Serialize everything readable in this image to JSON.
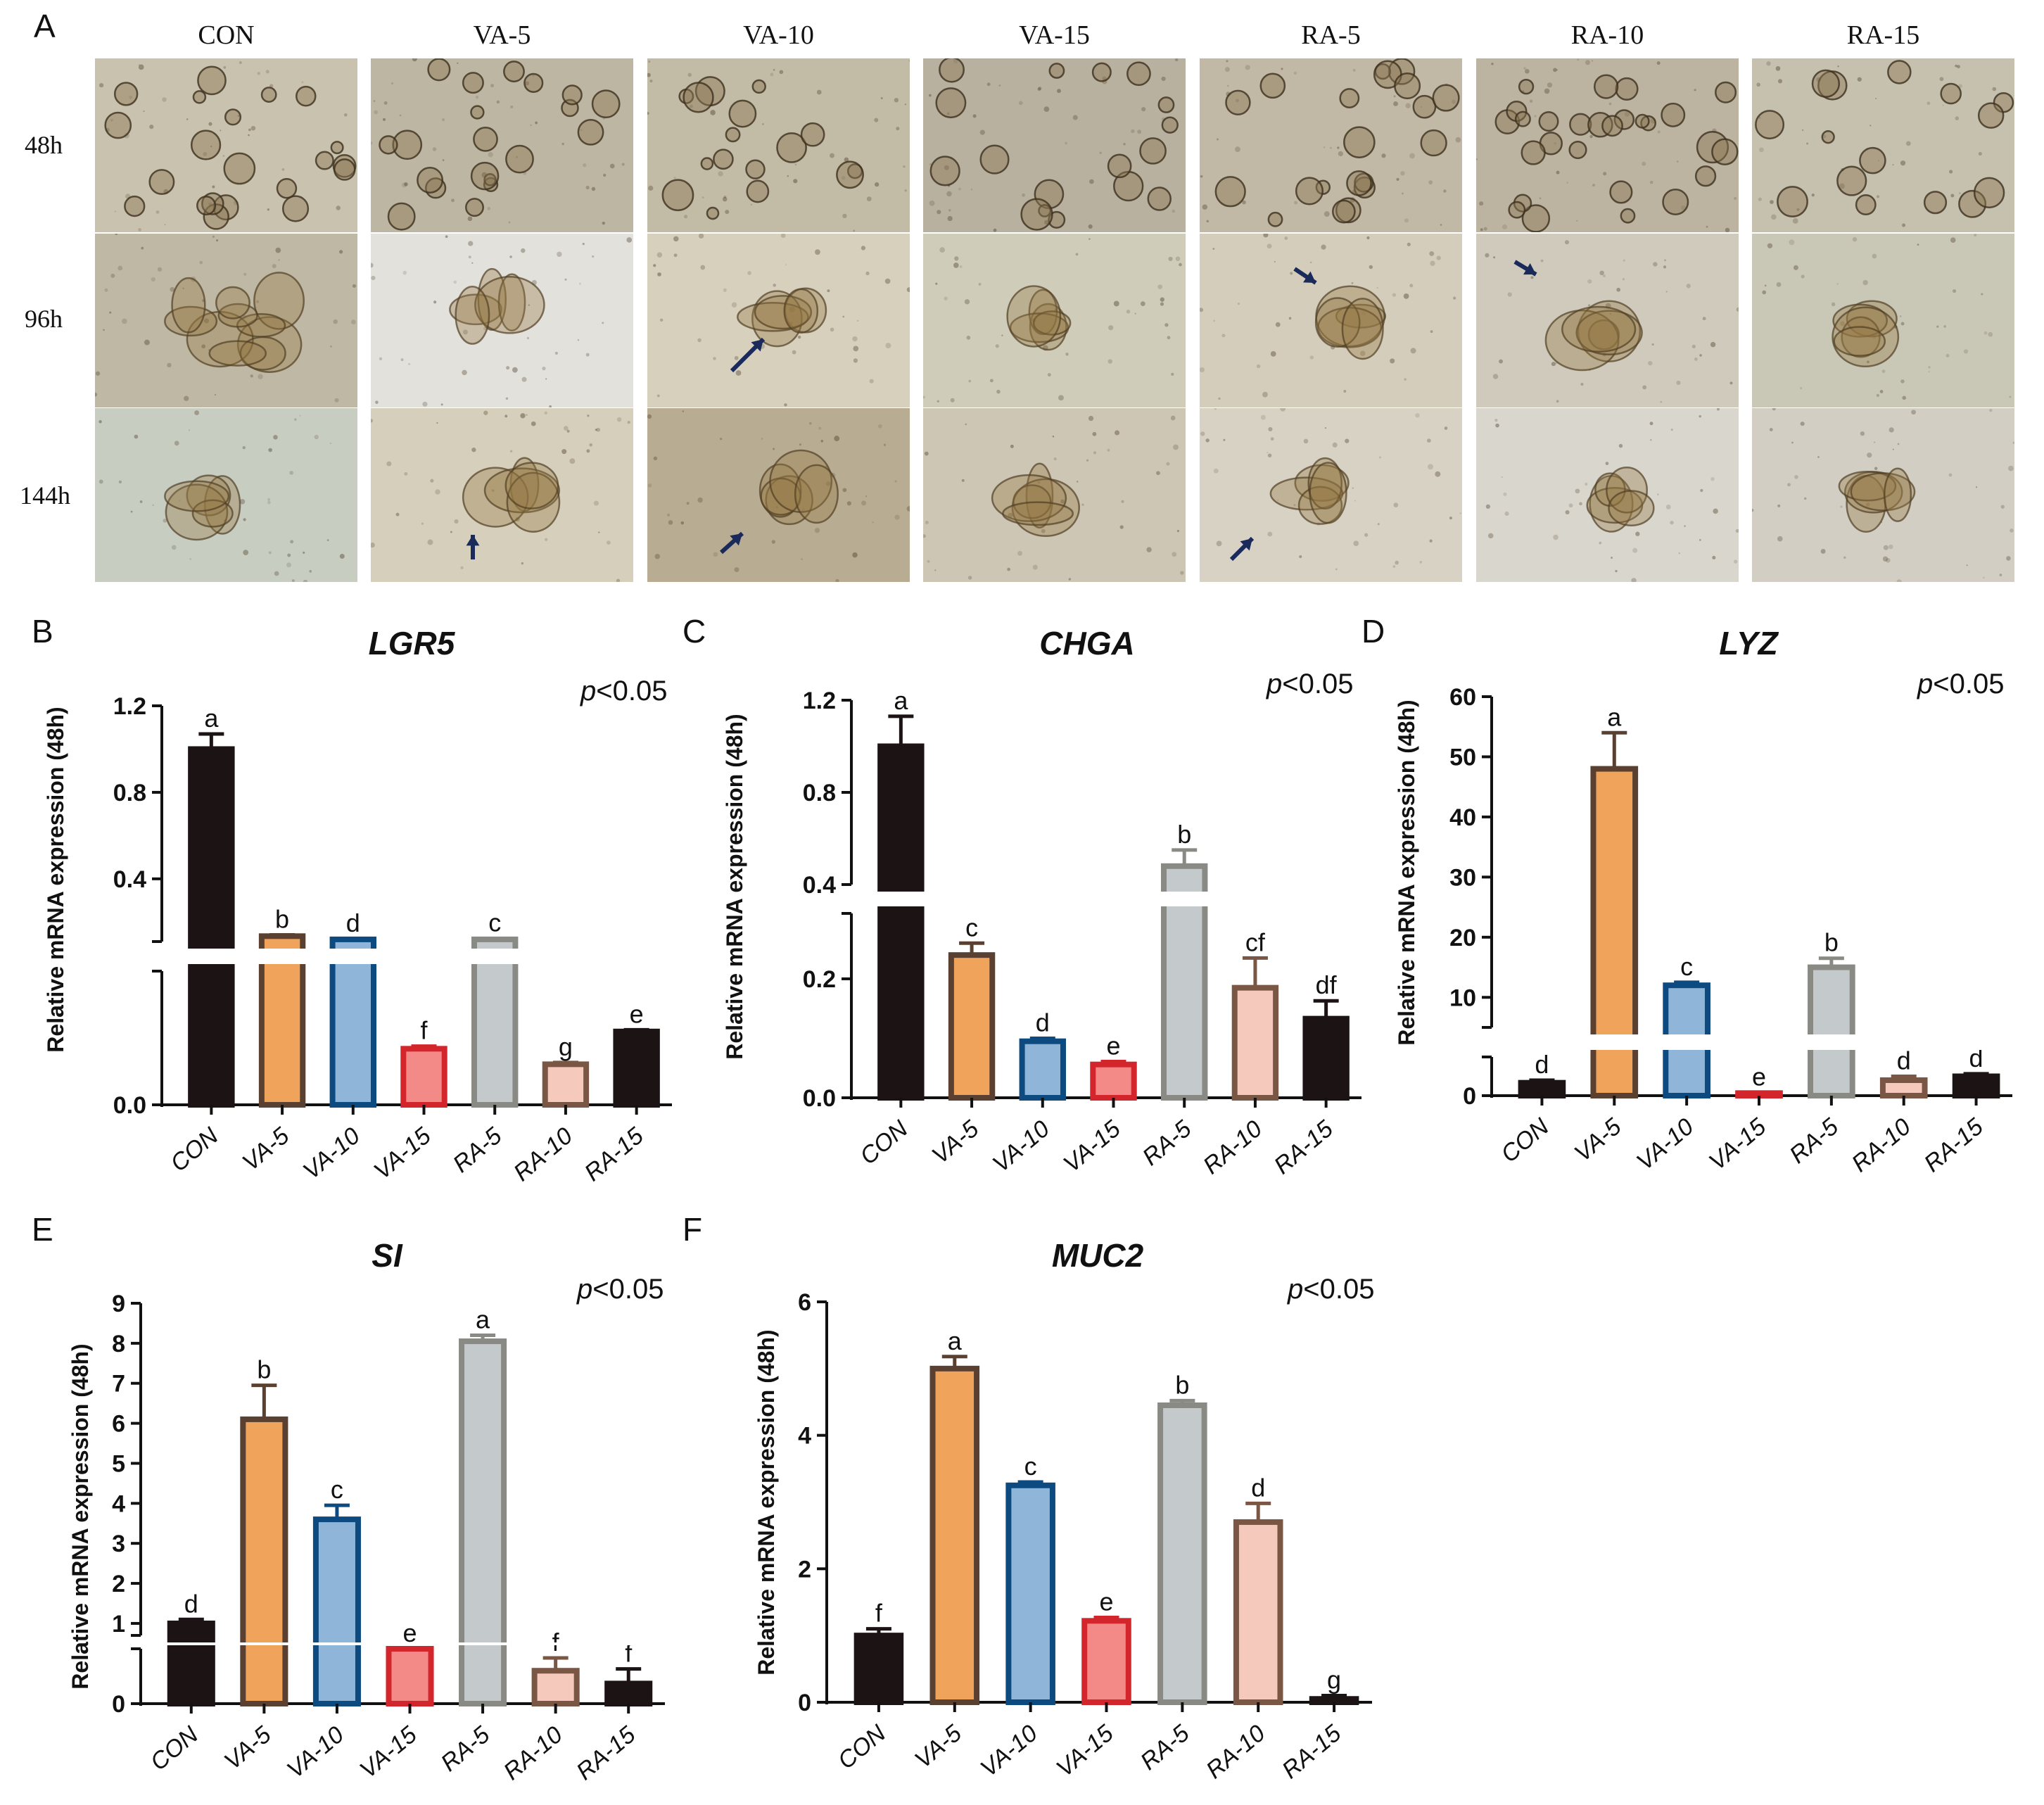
{
  "figure": {
    "panel_letters": {
      "A": "A",
      "B": "B",
      "C": "C",
      "D": "D",
      "E": "E",
      "F": "F"
    },
    "micrograph_columns": [
      "CON",
      "VA-5",
      "VA-10",
      "VA-15",
      "RA-5",
      "RA-10",
      "RA-15"
    ],
    "micrograph_rows": [
      "48h",
      "96h",
      "144h"
    ],
    "arrow_color": "#1a2a5a"
  },
  "colors": {
    "CON": "#1c1414",
    "VA-5": "#f0a35a",
    "VA-10": "#8fb6d8",
    "VA-15": "#f48a87",
    "RA-5": "#c4cacc",
    "RA-10": "#f6c9bd",
    "RA-15": "#1c1414",
    "CON_edge": "#1c1414",
    "VA-5_edge": "#5a4030",
    "VA-10_edge": "#0d4a80",
    "VA-15_edge": "#d3262c",
    "RA-5_edge": "#8a8a85",
    "RA-10_edge": "#7a5645",
    "RA-15_edge": "#1c1414"
  },
  "chart_data": [
    {
      "panel": "B",
      "type": "bar",
      "title": "LGR5",
      "annotation": "p<0.05",
      "annotation_italic": "p",
      "annotation_rest": "<0.05",
      "ylabel": "Relative mRNA expression (48h)",
      "categories": [
        "CON",
        "VA-5",
        "VA-10",
        "VA-15",
        "RA-5",
        "RA-10",
        "RA-15"
      ],
      "values": [
        1.0,
        0.135,
        0.12,
        0.065,
        0.12,
        0.047,
        0.085
      ],
      "errors": [
        0.07,
        0.006,
        0.003,
        0.003,
        0.004,
        0.002,
        0.002
      ],
      "letters": [
        "a",
        "b",
        "d",
        "f",
        "c",
        "g",
        "e"
      ],
      "yticks": [
        "0.0",
        "0.4",
        "0.8",
        "1.2"
      ],
      "broken_axis": true
    },
    {
      "panel": "C",
      "type": "bar",
      "title": "CHGA",
      "annotation": "p<0.05",
      "annotation_italic": "p",
      "annotation_rest": "<0.05",
      "ylabel": "Relative mRNA expression (48h)",
      "categories": [
        "CON",
        "VA-5",
        "VA-10",
        "VA-15",
        "RA-5",
        "RA-10",
        "RA-15"
      ],
      "values": [
        1.0,
        0.24,
        0.095,
        0.056,
        0.48,
        0.185,
        0.133
      ],
      "errors": [
        0.13,
        0.02,
        0.005,
        0.005,
        0.07,
        0.05,
        0.03
      ],
      "letters": [
        "a",
        "c",
        "d",
        "e",
        "b",
        "cf",
        "df"
      ],
      "yticks": [
        "0.0",
        "0.2",
        "0.4",
        "0.8",
        "1.2"
      ],
      "broken_axis": true
    },
    {
      "panel": "D",
      "type": "bar",
      "title": "LYZ",
      "annotation": "p<0.05",
      "annotation_italic": "p",
      "annotation_rest": "<0.05",
      "ylabel": "Relative mRNA expression (48h)",
      "categories": [
        "CON",
        "VA-5",
        "VA-10",
        "VA-15",
        "RA-5",
        "RA-10",
        "RA-15"
      ],
      "values": [
        1.0,
        48.0,
        12.0,
        0.2,
        15.0,
        1.2,
        1.5
      ],
      "errors": [
        0.2,
        6.0,
        0.5,
        0.05,
        1.5,
        0.3,
        0.2
      ],
      "letters": [
        "d",
        "a",
        "c",
        "e",
        "b",
        "d",
        "d"
      ],
      "yticks": [
        "0",
        "10",
        "20",
        "30",
        "40",
        "50",
        "60"
      ],
      "broken_axis": true
    },
    {
      "panel": "E",
      "type": "bar",
      "title": "SI",
      "annotation": "p<0.05",
      "annotation_italic": "p",
      "annotation_rest": "<0.05",
      "ylabel": "Relative mRNA expression (48h)",
      "categories": [
        "CON",
        "VA-5",
        "VA-10",
        "VA-15",
        "RA-5",
        "RA-10",
        "RA-15"
      ],
      "values": [
        1.0,
        6.1,
        3.6,
        0.3,
        8.05,
        0.09,
        0.055
      ],
      "errors": [
        0.1,
        0.85,
        0.35,
        0.1,
        0.15,
        0.035,
        0.04
      ],
      "letters": [
        "d",
        "b",
        "c",
        "e",
        "a",
        "f",
        "f"
      ],
      "yticks": [
        "0",
        "1",
        "2",
        "3",
        "4",
        "5",
        "6",
        "7",
        "8",
        "9"
      ],
      "broken_axis": true
    },
    {
      "panel": "F",
      "type": "bar",
      "title": "MUC2",
      "annotation": "p<0.05",
      "annotation_italic": "p",
      "annotation_rest": "<0.05",
      "ylabel": "Relative mRNA expression (48h)",
      "categories": [
        "CON",
        "VA-5",
        "VA-10",
        "VA-15",
        "RA-5",
        "RA-10",
        "RA-15"
      ],
      "values": [
        1.0,
        5.0,
        3.25,
        1.22,
        4.45,
        2.7,
        0.05
      ],
      "errors": [
        0.1,
        0.18,
        0.05,
        0.05,
        0.07,
        0.28,
        0.05
      ],
      "letters": [
        "f",
        "a",
        "c",
        "e",
        "b",
        "d",
        "g"
      ],
      "yticks": [
        "0",
        "2",
        "4",
        "6"
      ],
      "ylim": [
        0,
        6
      ],
      "broken_axis": false
    }
  ]
}
